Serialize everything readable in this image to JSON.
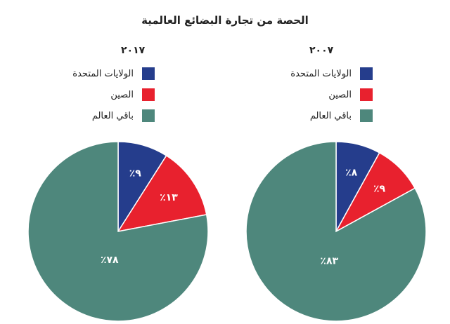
{
  "title": "الحصة من تجارة البضائع العالمية",
  "chart_data": [
    {
      "type": "pie",
      "title": "٢٠١٧",
      "slices": [
        {
          "label": "الولايات المتحدة",
          "value": 9,
          "display": "٪٩",
          "color": "#253d8c"
        },
        {
          "label": "الصين",
          "value": 13,
          "display": "٪١٣",
          "color": "#e8212e"
        },
        {
          "label": "باقي العالم",
          "value": 78,
          "display": "٪٧٨",
          "color": "#4e877c"
        }
      ],
      "legend_position": "top-right"
    },
    {
      "type": "pie",
      "title": "٢٠٠٧",
      "slices": [
        {
          "label": "الولايات المتحدة",
          "value": 8,
          "display": "٪٨",
          "color": "#253d8c"
        },
        {
          "label": "الصين",
          "value": 9,
          "display": "٪٩",
          "color": "#e8212e"
        },
        {
          "label": "باقي العالم",
          "value": 83,
          "display": "٪٨٣",
          "color": "#4e877c"
        }
      ],
      "legend_position": "top-right"
    }
  ]
}
